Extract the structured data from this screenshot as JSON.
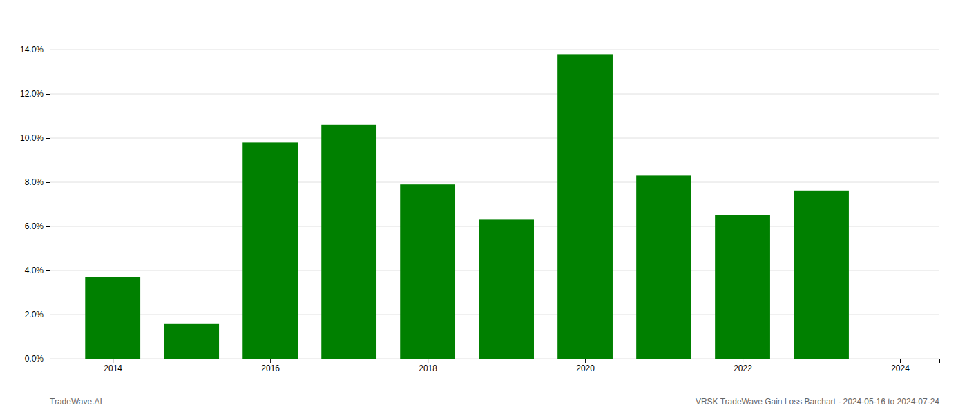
{
  "chart_data": {
    "type": "bar",
    "x": [
      2014,
      2015,
      2016,
      2017,
      2018,
      2019,
      2020,
      2021,
      2022,
      2023
    ],
    "values": [
      0.037,
      0.016,
      0.098,
      0.106,
      0.079,
      0.063,
      0.138,
      0.083,
      0.065,
      0.076
    ],
    "color": "#008000",
    "xlim": [
      2013.2,
      2024.5
    ],
    "xticks": [
      2014,
      2016,
      2018,
      2020,
      2022,
      2024
    ],
    "ylim": [
      0,
      0.155
    ],
    "yticks": [
      {
        "value": 0.0,
        "label": "0.0%"
      },
      {
        "value": 0.02,
        "label": "2.0%"
      },
      {
        "value": 0.04,
        "label": "4.0%"
      },
      {
        "value": 0.06,
        "label": "6.0%"
      },
      {
        "value": 0.08,
        "label": "8.0%"
      },
      {
        "value": 0.1,
        "label": "10.0%"
      },
      {
        "value": 0.12,
        "label": "12.0%"
      },
      {
        "value": 0.14,
        "label": "14.0%"
      }
    ],
    "grid": true,
    "annotations": [
      "TradeWave.AI",
      "VRSK TradeWave Gain Loss Barchart - 2024-05-16 to 2024-07-24"
    ]
  }
}
